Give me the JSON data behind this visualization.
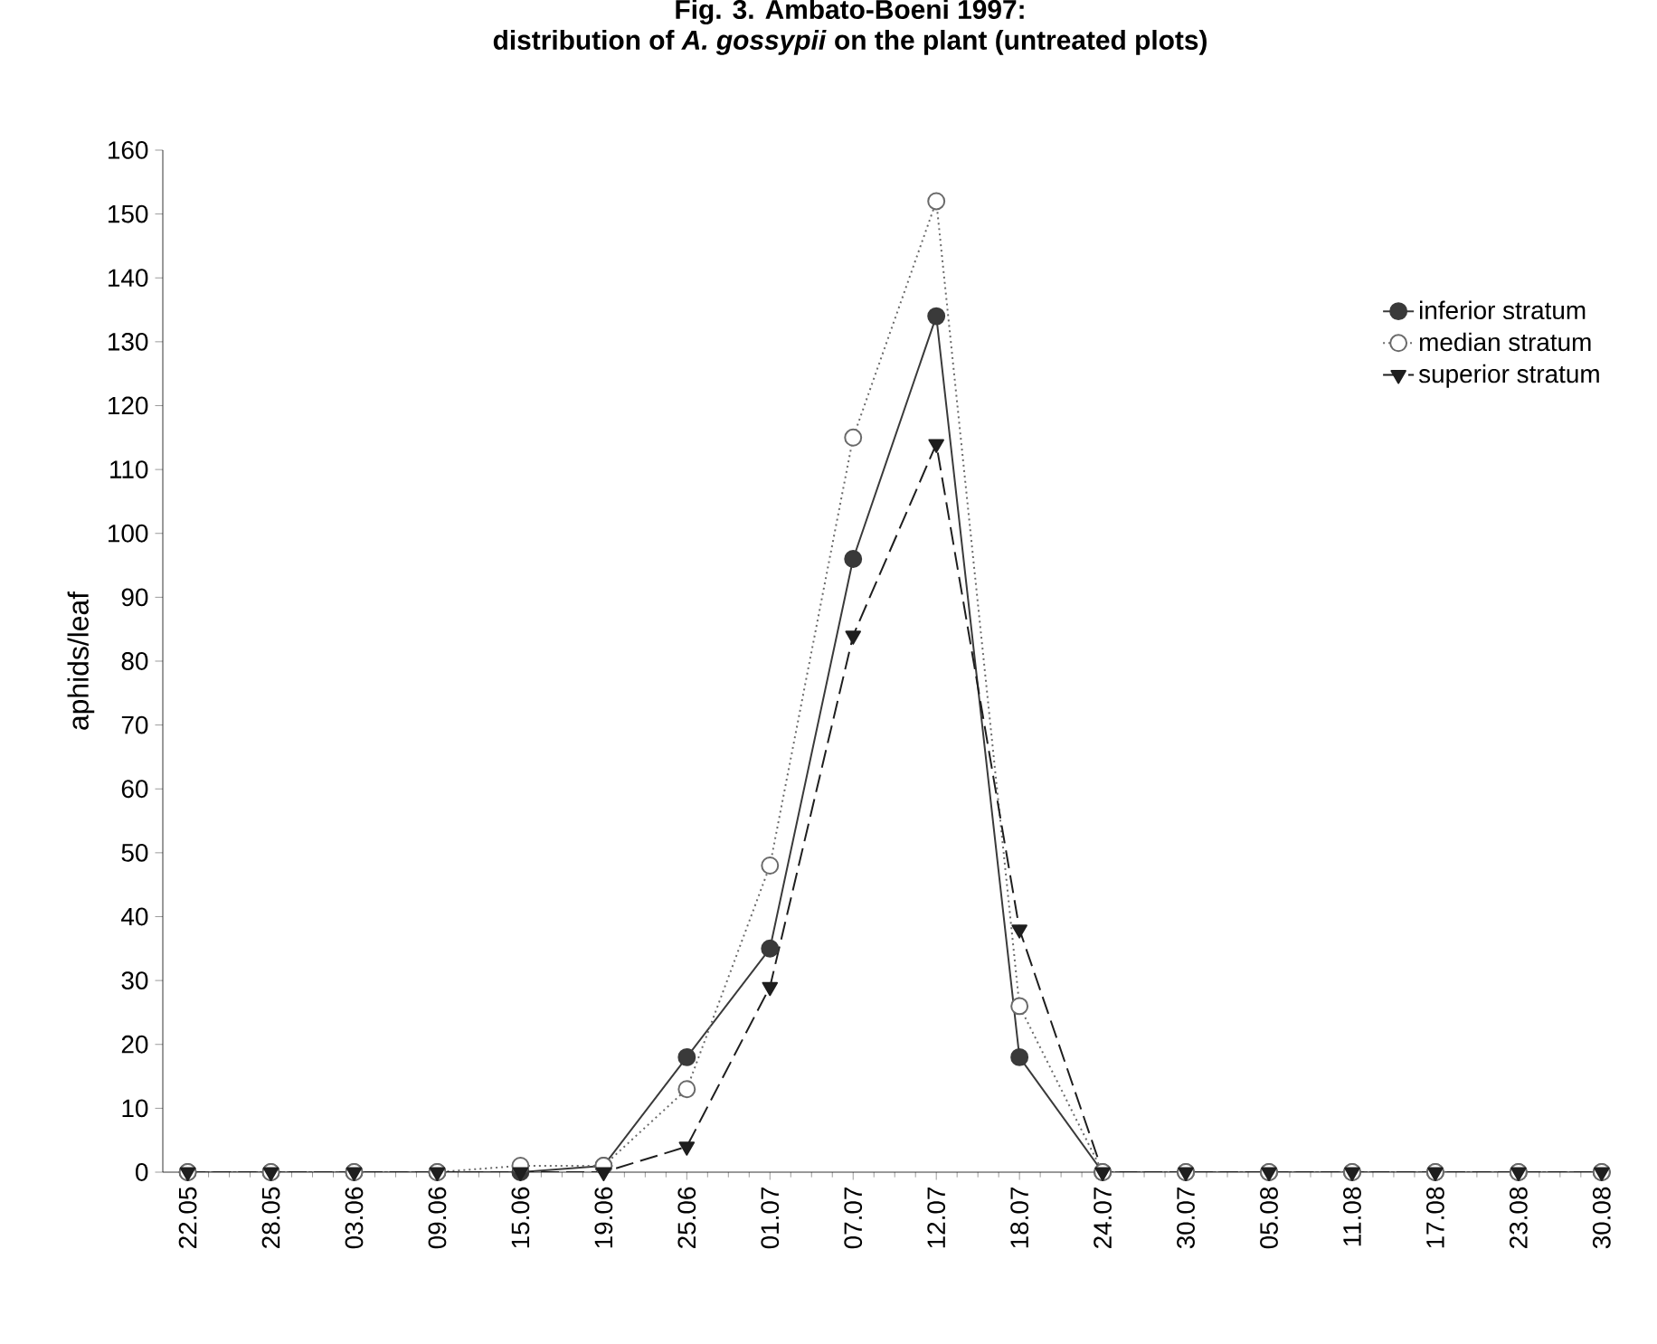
{
  "chart_data": {
    "type": "line",
    "title": "Fig. 3. Ambato-Boeni 1997:",
    "subtitle": "distribution of *A. gossypii* on the plant (untreated plots)",
    "ylabel": "aphids/leaf",
    "categories": [
      "22.05",
      "28.05",
      "03.06",
      "09.06",
      "15.06",
      "19.06",
      "25.06",
      "01.07",
      "07.07",
      "12.07",
      "18.07",
      "24.07",
      "30.07",
      "05.08",
      "11.08",
      "17.08",
      "23.08",
      "30.08"
    ],
    "series": [
      {
        "name": "inferior stratum",
        "color": "#3a3a3a",
        "marker": "circle",
        "line_style": "solid",
        "values": [
          0,
          0,
          0,
          0,
          0,
          1,
          18,
          35,
          96,
          134,
          18,
          0,
          0,
          0,
          0,
          0,
          0,
          0
        ]
      },
      {
        "name": "median stratum",
        "color": "#6a6a6a",
        "marker": "circle",
        "colors": [
          "#ffffff",
          "#ffffff",
          "#ffffff",
          "#ffffff",
          "#ffffff",
          "#ffffff",
          "#ffffff",
          "#ffffff",
          "#ffffff",
          "#ffffff",
          "#ffffff",
          "#ffffff",
          "#ffffff",
          "#ffffff",
          "#ffffff",
          "#ffffff",
          "#ffffff",
          "#ffffff"
        ],
        "line_style": "dotted",
        "values": [
          0,
          0,
          0,
          0,
          1,
          1,
          13,
          48,
          115,
          152,
          26,
          0,
          0,
          0,
          0,
          0,
          0,
          0
        ]
      },
      {
        "name": "superior stratum",
        "color": "#1e1e1e",
        "marker": "triangle",
        "line_style": "dashed",
        "values": [
          0,
          0,
          0,
          0,
          0,
          0,
          4,
          29,
          84,
          114,
          38,
          0,
          0,
          0,
          0,
          0,
          0,
          0
        ]
      }
    ],
    "ylim": [
      0,
      160
    ],
    "yticks": [
      0,
      10,
      20,
      30,
      40,
      50,
      60,
      70,
      80,
      90,
      100,
      110,
      120,
      130,
      140,
      150,
      160
    ],
    "grid": false,
    "legend": "top right"
  }
}
